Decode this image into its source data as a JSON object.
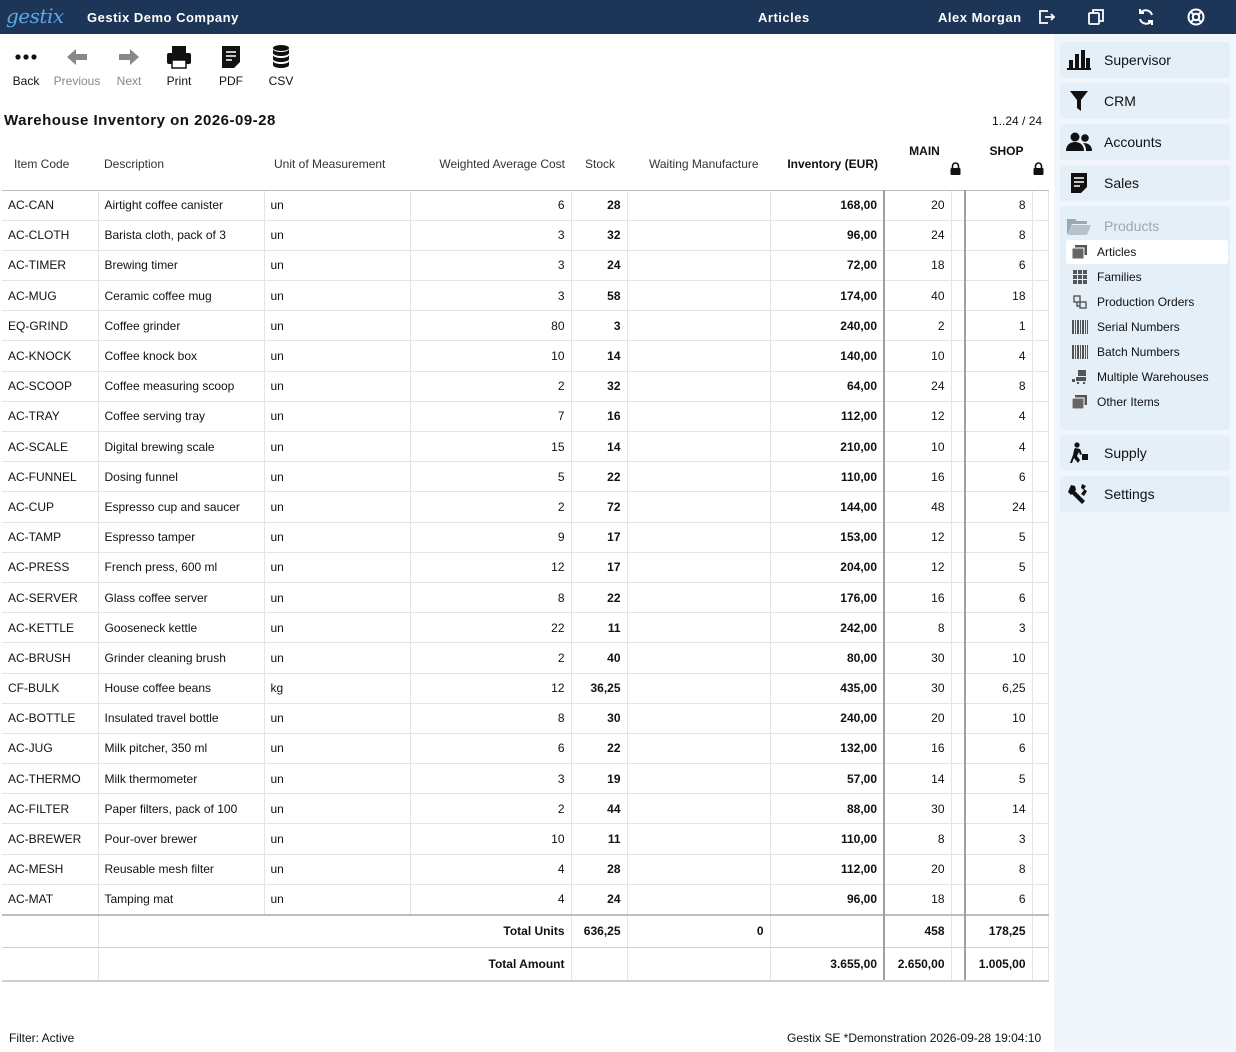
{
  "header": {
    "logo": "gestix",
    "company": "Gestix Demo Company",
    "module": "Articles",
    "user": "Alex Morgan",
    "icons": [
      "logout-icon",
      "copy-window-icon",
      "refresh-icon",
      "help-lifebuoy-icon"
    ]
  },
  "toolbar": {
    "back": "Back",
    "previous": "Previous",
    "next": "Next",
    "print": "Print",
    "pdf": "PDF",
    "csv": "CSV"
  },
  "report": {
    "title": "Warehouse Inventory on 2026-09-28",
    "pager": "1..24 / 24"
  },
  "table": {
    "columns": {
      "code": "Item Code",
      "description": "Description",
      "unit": "Unit of Measurement",
      "wac": "Weighted Average Cost",
      "stock": "Stock",
      "waiting": "Waiting Manufacture",
      "inventory": "Inventory (EUR)",
      "main": "MAIN",
      "shop": "SHOP"
    },
    "rows": [
      [
        "AC-CAN",
        "Airtight coffee canister",
        "un",
        "6",
        "28",
        "",
        "168,00",
        "20",
        "8"
      ],
      [
        "AC-CLOTH",
        "Barista cloth, pack of 3",
        "un",
        "3",
        "32",
        "",
        "96,00",
        "24",
        "8"
      ],
      [
        "AC-TIMER",
        "Brewing timer",
        "un",
        "3",
        "24",
        "",
        "72,00",
        "18",
        "6"
      ],
      [
        "AC-MUG",
        "Ceramic coffee mug",
        "un",
        "3",
        "58",
        "",
        "174,00",
        "40",
        "18"
      ],
      [
        "EQ-GRIND",
        "Coffee grinder",
        "un",
        "80",
        "3",
        "",
        "240,00",
        "2",
        "1"
      ],
      [
        "AC-KNOCK",
        "Coffee knock box",
        "un",
        "10",
        "14",
        "",
        "140,00",
        "10",
        "4"
      ],
      [
        "AC-SCOOP",
        "Coffee measuring scoop",
        "un",
        "2",
        "32",
        "",
        "64,00",
        "24",
        "8"
      ],
      [
        "AC-TRAY",
        "Coffee serving tray",
        "un",
        "7",
        "16",
        "",
        "112,00",
        "12",
        "4"
      ],
      [
        "AC-SCALE",
        "Digital brewing scale",
        "un",
        "15",
        "14",
        "",
        "210,00",
        "10",
        "4"
      ],
      [
        "AC-FUNNEL",
        "Dosing funnel",
        "un",
        "5",
        "22",
        "",
        "110,00",
        "16",
        "6"
      ],
      [
        "AC-CUP",
        "Espresso cup and saucer",
        "un",
        "2",
        "72",
        "",
        "144,00",
        "48",
        "24"
      ],
      [
        "AC-TAMP",
        "Espresso tamper",
        "un",
        "9",
        "17",
        "",
        "153,00",
        "12",
        "5"
      ],
      [
        "AC-PRESS",
        "French press, 600 ml",
        "un",
        "12",
        "17",
        "",
        "204,00",
        "12",
        "5"
      ],
      [
        "AC-SERVER",
        "Glass coffee server",
        "un",
        "8",
        "22",
        "",
        "176,00",
        "16",
        "6"
      ],
      [
        "AC-KETTLE",
        "Gooseneck kettle",
        "un",
        "22",
        "11",
        "",
        "242,00",
        "8",
        "3"
      ],
      [
        "AC-BRUSH",
        "Grinder cleaning brush",
        "un",
        "2",
        "40",
        "",
        "80,00",
        "30",
        "10"
      ],
      [
        "CF-BULK",
        "House coffee beans",
        "kg",
        "12",
        "36,25",
        "",
        "435,00",
        "30",
        "6,25"
      ],
      [
        "AC-BOTTLE",
        "Insulated travel bottle",
        "un",
        "8",
        "30",
        "",
        "240,00",
        "20",
        "10"
      ],
      [
        "AC-JUG",
        "Milk pitcher, 350 ml",
        "un",
        "6",
        "22",
        "",
        "132,00",
        "16",
        "6"
      ],
      [
        "AC-THERMO",
        "Milk thermometer",
        "un",
        "3",
        "19",
        "",
        "57,00",
        "14",
        "5"
      ],
      [
        "AC-FILTER",
        "Paper filters, pack of 100",
        "un",
        "2",
        "44",
        "",
        "88,00",
        "30",
        "14"
      ],
      [
        "AC-BREWER",
        "Pour-over brewer",
        "un",
        "10",
        "11",
        "",
        "110,00",
        "8",
        "3"
      ],
      [
        "AC-MESH",
        "Reusable mesh filter",
        "un",
        "4",
        "28",
        "",
        "112,00",
        "20",
        "8"
      ],
      [
        "AC-MAT",
        "Tamping mat",
        "un",
        "4",
        "24",
        "",
        "96,00",
        "18",
        "6"
      ]
    ],
    "totals": {
      "units_label": "Total Units",
      "units_stock": "636,25",
      "units_waiting": "0",
      "units_main": "458",
      "units_shop": "178,25",
      "amount_label": "Total Amount",
      "amount_inventory": "3.655,00",
      "amount_main": "2.650,00",
      "amount_shop": "1.005,00"
    }
  },
  "footer": {
    "filter": "Filter: Active",
    "info": "Gestix SE *Demonstration 2026-09-28 19:04:10"
  },
  "sidebar": {
    "supervisor": "Supervisor",
    "crm": "CRM",
    "accounts": "Accounts",
    "sales": "Sales",
    "products": "Products",
    "products_items": [
      "Articles",
      "Families",
      "Production Orders",
      "Serial Numbers",
      "Batch Numbers",
      "Multiple Warehouses",
      "Other Items"
    ],
    "supply": "Supply",
    "settings": "Settings"
  },
  "colors": {
    "topbar": "#1d3557",
    "logo": "#5aa9e6",
    "sidebar_bg": "#f0f6fb",
    "sidebar_item": "#e4eff8"
  }
}
